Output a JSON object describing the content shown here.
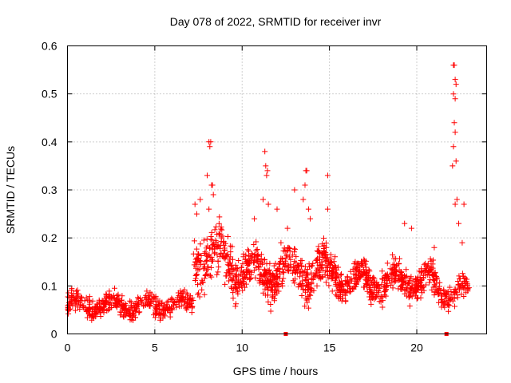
{
  "chart_data": {
    "type": "scatter",
    "title": "Day 078 of 2022, SRMTID for receiver invr",
    "xlabel": "GPS time / hours",
    "ylabel": "SRMTID / TECUs",
    "xlim": [
      0,
      24
    ],
    "ylim": [
      0,
      0.6
    ],
    "xticks": [
      0,
      5,
      10,
      15,
      20
    ],
    "yticks": [
      0,
      0.1,
      0.2,
      0.3,
      0.4,
      0.5,
      0.6
    ],
    "xtick_labels": [
      "0",
      "5",
      "10",
      "15",
      "20"
    ],
    "ytick_labels": [
      "0",
      "0.1",
      "0.2",
      "0.3",
      "0.4",
      "0.5",
      "0.6"
    ],
    "grid": true,
    "marker": "+",
    "series_color": "#ff0000",
    "series": [
      {
        "name": "SRMTID",
        "profile": [
          {
            "x0": 0.0,
            "x1": 7.2,
            "center": 0.06,
            "spread": 0.035,
            "density": 60
          },
          {
            "x0": 7.2,
            "x1": 9.5,
            "center": 0.16,
            "spread": 0.09,
            "density": 75
          },
          {
            "x0": 9.5,
            "x1": 15.5,
            "center": 0.13,
            "spread": 0.07,
            "density": 85
          },
          {
            "x0": 15.5,
            "x1": 21.0,
            "center": 0.11,
            "spread": 0.055,
            "density": 80
          },
          {
            "x0": 21.0,
            "x1": 23.0,
            "center": 0.09,
            "spread": 0.05,
            "density": 55
          }
        ],
        "highlights": [
          {
            "x": 7.3,
            "y": 0.27
          },
          {
            "x": 7.4,
            "y": 0.25
          },
          {
            "x": 7.6,
            "y": 0.28
          },
          {
            "x": 8.1,
            "y": 0.4
          },
          {
            "x": 8.15,
            "y": 0.39
          },
          {
            "x": 8.2,
            "y": 0.4
          },
          {
            "x": 8.0,
            "y": 0.33
          },
          {
            "x": 8.25,
            "y": 0.31
          },
          {
            "x": 8.3,
            "y": 0.31
          },
          {
            "x": 8.35,
            "y": 0.29
          },
          {
            "x": 8.1,
            "y": 0.26
          },
          {
            "x": 10.7,
            "y": 0.24
          },
          {
            "x": 11.2,
            "y": 0.28
          },
          {
            "x": 11.3,
            "y": 0.38
          },
          {
            "x": 11.35,
            "y": 0.35
          },
          {
            "x": 11.4,
            "y": 0.33
          },
          {
            "x": 11.45,
            "y": 0.34
          },
          {
            "x": 11.5,
            "y": 0.27
          },
          {
            "x": 12.0,
            "y": 0.26
          },
          {
            "x": 12.6,
            "y": 0.22
          },
          {
            "x": 13.0,
            "y": 0.3
          },
          {
            "x": 13.5,
            "y": 0.28
          },
          {
            "x": 13.6,
            "y": 0.31
          },
          {
            "x": 13.65,
            "y": 0.34
          },
          {
            "x": 13.7,
            "y": 0.34
          },
          {
            "x": 13.8,
            "y": 0.26
          },
          {
            "x": 13.9,
            "y": 0.24
          },
          {
            "x": 14.9,
            "y": 0.33
          },
          {
            "x": 14.9,
            "y": 0.26
          },
          {
            "x": 19.3,
            "y": 0.23
          },
          {
            "x": 19.7,
            "y": 0.22
          },
          {
            "x": 22.1,
            "y": 0.56
          },
          {
            "x": 22.15,
            "y": 0.56
          },
          {
            "x": 22.2,
            "y": 0.53
          },
          {
            "x": 22.25,
            "y": 0.52
          },
          {
            "x": 22.1,
            "y": 0.5
          },
          {
            "x": 22.2,
            "y": 0.49
          },
          {
            "x": 22.15,
            "y": 0.44
          },
          {
            "x": 22.2,
            "y": 0.42
          },
          {
            "x": 22.1,
            "y": 0.39
          },
          {
            "x": 22.25,
            "y": 0.36
          },
          {
            "x": 22.05,
            "y": 0.35
          },
          {
            "x": 22.3,
            "y": 0.28
          },
          {
            "x": 22.2,
            "y": 0.27
          },
          {
            "x": 22.7,
            "y": 0.27
          },
          {
            "x": 22.4,
            "y": 0.23
          },
          {
            "x": 22.6,
            "y": 0.19
          },
          {
            "x": 21.0,
            "y": 0.18
          }
        ]
      }
    ],
    "gap_markers_x": [
      12.5,
      21.7
    ]
  }
}
